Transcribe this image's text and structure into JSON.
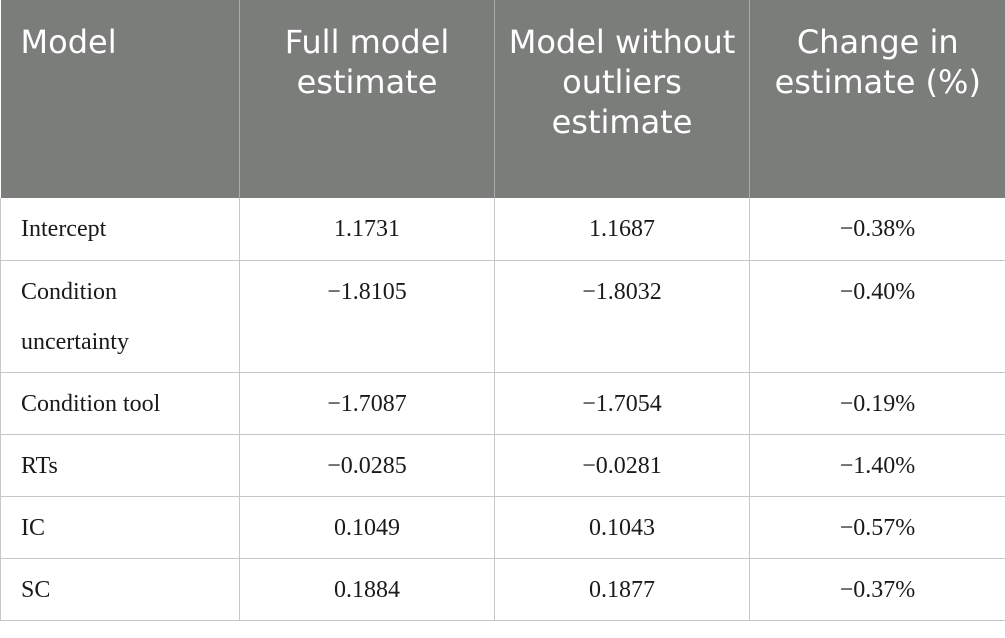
{
  "table": {
    "headers": [
      "Model",
      "Full model estimate",
      "Model without outliers estimate",
      "Change in estimate (%)"
    ],
    "rows": [
      [
        "Intercept",
        "1.1731",
        "1.1687",
        "−0.38%"
      ],
      [
        "Condition uncertainty",
        "−1.8105",
        "−1.8032",
        "−0.40%"
      ],
      [
        "Condition tool",
        "−1.7087",
        "−1.7054",
        "−0.19%"
      ],
      [
        "RTs",
        "−0.0285",
        "−0.0281",
        "−1.40%"
      ],
      [
        "IC",
        "0.1049",
        "0.1043",
        "−0.57%"
      ],
      [
        "SC",
        "0.1884",
        "0.1877",
        "−0.37%"
      ]
    ]
  },
  "colors": {
    "header_bg": "#7b7d7b",
    "header_text": "#ffffff",
    "grid": "#c7c7c7"
  }
}
